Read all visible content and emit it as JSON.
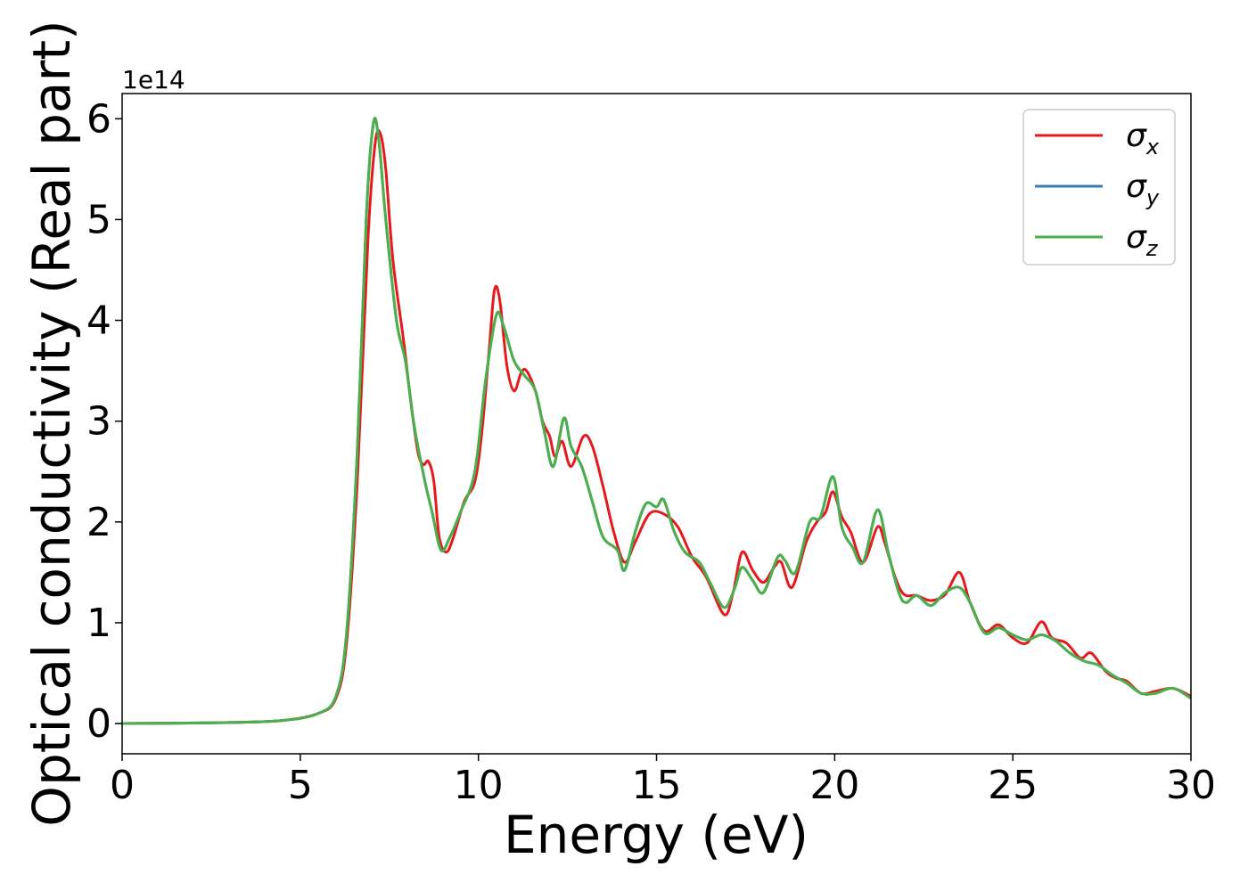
{
  "chart_data": {
    "type": "line",
    "xlabel": "Energy (eV)",
    "ylabel": "Optical conductivity (Real part)",
    "offset_text": "1e14",
    "y_scale_factor": 100000000000000.0,
    "xlim": [
      0,
      30
    ],
    "ylim": [
      -0.3,
      6.25
    ],
    "x_ticks": [
      0,
      5,
      10,
      15,
      20,
      25,
      30
    ],
    "y_ticks": [
      0,
      1,
      2,
      3,
      4,
      5,
      6
    ],
    "grid": false,
    "legend_position": "top-right",
    "series": [
      {
        "name": "σx",
        "symbol": "σ",
        "subscript": "x",
        "color": "#e41a1c",
        "points": [
          [
            0,
            0
          ],
          [
            3,
            0.01
          ],
          [
            4.5,
            0.03
          ],
          [
            5.5,
            0.1
          ],
          [
            6.0,
            0.25
          ],
          [
            6.3,
            0.8
          ],
          [
            6.6,
            2.4
          ],
          [
            6.9,
            4.8
          ],
          [
            7.1,
            5.75
          ],
          [
            7.25,
            5.85
          ],
          [
            7.4,
            5.5
          ],
          [
            7.6,
            4.6
          ],
          [
            7.9,
            3.8
          ],
          [
            8.1,
            3.2
          ],
          [
            8.3,
            2.7
          ],
          [
            8.45,
            2.57
          ],
          [
            8.6,
            2.6
          ],
          [
            8.75,
            2.4
          ],
          [
            8.9,
            1.85
          ],
          [
            9.1,
            1.7
          ],
          [
            9.3,
            1.85
          ],
          [
            9.6,
            2.2
          ],
          [
            9.9,
            2.4
          ],
          [
            10.1,
            2.9
          ],
          [
            10.3,
            3.7
          ],
          [
            10.45,
            4.3
          ],
          [
            10.6,
            4.2
          ],
          [
            10.8,
            3.55
          ],
          [
            11.0,
            3.3
          ],
          [
            11.2,
            3.48
          ],
          [
            11.35,
            3.5
          ],
          [
            11.6,
            3.3
          ],
          [
            11.8,
            3.0
          ],
          [
            12.0,
            2.85
          ],
          [
            12.15,
            2.65
          ],
          [
            12.35,
            2.8
          ],
          [
            12.6,
            2.55
          ],
          [
            12.95,
            2.85
          ],
          [
            13.2,
            2.75
          ],
          [
            13.5,
            2.35
          ],
          [
            13.8,
            1.9
          ],
          [
            14.1,
            1.6
          ],
          [
            14.4,
            1.8
          ],
          [
            14.8,
            2.08
          ],
          [
            15.2,
            2.08
          ],
          [
            15.6,
            1.95
          ],
          [
            16.0,
            1.65
          ],
          [
            16.4,
            1.45
          ],
          [
            16.9,
            1.08
          ],
          [
            17.15,
            1.3
          ],
          [
            17.4,
            1.7
          ],
          [
            17.7,
            1.52
          ],
          [
            18.0,
            1.4
          ],
          [
            18.3,
            1.55
          ],
          [
            18.5,
            1.6
          ],
          [
            18.8,
            1.35
          ],
          [
            19.2,
            1.8
          ],
          [
            19.5,
            2.0
          ],
          [
            19.75,
            2.1
          ],
          [
            19.95,
            2.3
          ],
          [
            20.2,
            2.05
          ],
          [
            20.45,
            1.9
          ],
          [
            20.8,
            1.6
          ],
          [
            21.2,
            1.95
          ],
          [
            21.4,
            1.8
          ],
          [
            21.7,
            1.45
          ],
          [
            21.95,
            1.28
          ],
          [
            22.3,
            1.27
          ],
          [
            22.7,
            1.22
          ],
          [
            23.1,
            1.28
          ],
          [
            23.5,
            1.5
          ],
          [
            23.8,
            1.2
          ],
          [
            24.2,
            0.92
          ],
          [
            24.6,
            0.98
          ],
          [
            25.0,
            0.85
          ],
          [
            25.4,
            0.8
          ],
          [
            25.8,
            1.01
          ],
          [
            26.1,
            0.85
          ],
          [
            26.5,
            0.8
          ],
          [
            26.9,
            0.65
          ],
          [
            27.2,
            0.7
          ],
          [
            27.6,
            0.52
          ],
          [
            27.9,
            0.45
          ],
          [
            28.2,
            0.42
          ],
          [
            28.6,
            0.3
          ],
          [
            29.0,
            0.32
          ],
          [
            29.5,
            0.35
          ],
          [
            30.0,
            0.27
          ]
        ]
      },
      {
        "name": "σy",
        "symbol": "σ",
        "subscript": "y",
        "color": "#377eb8",
        "points": [
          [
            0,
            0
          ],
          [
            3,
            0.01
          ],
          [
            4.5,
            0.03
          ],
          [
            5.5,
            0.1
          ],
          [
            6.0,
            0.27
          ],
          [
            6.3,
            0.9
          ],
          [
            6.6,
            2.7
          ],
          [
            6.85,
            5.0
          ],
          [
            7.05,
            5.95
          ],
          [
            7.2,
            5.8
          ],
          [
            7.4,
            5.0
          ],
          [
            7.7,
            4.0
          ],
          [
            7.95,
            3.6
          ],
          [
            8.2,
            2.95
          ],
          [
            8.5,
            2.4
          ],
          [
            8.7,
            2.1
          ],
          [
            8.95,
            1.72
          ],
          [
            9.2,
            1.85
          ],
          [
            9.5,
            2.1
          ],
          [
            9.9,
            2.5
          ],
          [
            10.2,
            3.4
          ],
          [
            10.5,
            4.05
          ],
          [
            10.7,
            3.95
          ],
          [
            11.0,
            3.6
          ],
          [
            11.3,
            3.45
          ],
          [
            11.6,
            3.3
          ],
          [
            11.85,
            2.9
          ],
          [
            12.1,
            2.55
          ],
          [
            12.4,
            3.03
          ],
          [
            12.6,
            2.75
          ],
          [
            12.9,
            2.55
          ],
          [
            13.2,
            2.2
          ],
          [
            13.5,
            1.85
          ],
          [
            13.9,
            1.72
          ],
          [
            14.1,
            1.52
          ],
          [
            14.4,
            1.9
          ],
          [
            14.7,
            2.18
          ],
          [
            15.0,
            2.15
          ],
          [
            15.2,
            2.22
          ],
          [
            15.5,
            1.9
          ],
          [
            15.8,
            1.7
          ],
          [
            16.2,
            1.6
          ],
          [
            16.5,
            1.4
          ],
          [
            16.9,
            1.15
          ],
          [
            17.2,
            1.35
          ],
          [
            17.4,
            1.55
          ],
          [
            17.7,
            1.42
          ],
          [
            18.0,
            1.3
          ],
          [
            18.4,
            1.65
          ],
          [
            18.6,
            1.62
          ],
          [
            18.9,
            1.5
          ],
          [
            19.3,
            2.0
          ],
          [
            19.6,
            2.05
          ],
          [
            19.95,
            2.45
          ],
          [
            20.2,
            1.95
          ],
          [
            20.5,
            1.75
          ],
          [
            20.8,
            1.6
          ],
          [
            21.2,
            2.12
          ],
          [
            21.5,
            1.7
          ],
          [
            21.8,
            1.3
          ],
          [
            22.0,
            1.2
          ],
          [
            22.3,
            1.27
          ],
          [
            22.7,
            1.17
          ],
          [
            23.1,
            1.3
          ],
          [
            23.5,
            1.35
          ],
          [
            23.8,
            1.2
          ],
          [
            24.2,
            0.9
          ],
          [
            24.6,
            0.95
          ],
          [
            25.0,
            0.88
          ],
          [
            25.4,
            0.83
          ],
          [
            25.8,
            0.88
          ],
          [
            26.2,
            0.82
          ],
          [
            26.6,
            0.7
          ],
          [
            27.0,
            0.62
          ],
          [
            27.4,
            0.58
          ],
          [
            27.8,
            0.48
          ],
          [
            28.2,
            0.4
          ],
          [
            28.6,
            0.3
          ],
          [
            29.0,
            0.3
          ],
          [
            29.5,
            0.35
          ],
          [
            30.0,
            0.25
          ]
        ]
      },
      {
        "name": "σz",
        "symbol": "σ",
        "subscript": "z",
        "color": "#4daf4a",
        "points": [
          [
            0,
            0
          ],
          [
            3,
            0.01
          ],
          [
            4.5,
            0.03
          ],
          [
            5.5,
            0.1
          ],
          [
            6.0,
            0.27
          ],
          [
            6.3,
            0.9
          ],
          [
            6.6,
            2.7
          ],
          [
            6.85,
            5.0
          ],
          [
            7.05,
            5.95
          ],
          [
            7.2,
            5.8
          ],
          [
            7.4,
            5.0
          ],
          [
            7.7,
            4.0
          ],
          [
            7.95,
            3.6
          ],
          [
            8.2,
            2.95
          ],
          [
            8.5,
            2.4
          ],
          [
            8.7,
            2.1
          ],
          [
            8.95,
            1.72
          ],
          [
            9.2,
            1.85
          ],
          [
            9.5,
            2.1
          ],
          [
            9.9,
            2.5
          ],
          [
            10.2,
            3.4
          ],
          [
            10.5,
            4.05
          ],
          [
            10.7,
            3.95
          ],
          [
            11.0,
            3.6
          ],
          [
            11.3,
            3.45
          ],
          [
            11.6,
            3.3
          ],
          [
            11.85,
            2.9
          ],
          [
            12.1,
            2.55
          ],
          [
            12.4,
            3.03
          ],
          [
            12.6,
            2.75
          ],
          [
            12.9,
            2.55
          ],
          [
            13.2,
            2.2
          ],
          [
            13.5,
            1.85
          ],
          [
            13.9,
            1.72
          ],
          [
            14.1,
            1.52
          ],
          [
            14.4,
            1.9
          ],
          [
            14.7,
            2.18
          ],
          [
            15.0,
            2.15
          ],
          [
            15.2,
            2.22
          ],
          [
            15.5,
            1.9
          ],
          [
            15.8,
            1.7
          ],
          [
            16.2,
            1.6
          ],
          [
            16.5,
            1.4
          ],
          [
            16.9,
            1.15
          ],
          [
            17.2,
            1.35
          ],
          [
            17.4,
            1.55
          ],
          [
            17.7,
            1.42
          ],
          [
            18.0,
            1.3
          ],
          [
            18.4,
            1.65
          ],
          [
            18.6,
            1.62
          ],
          [
            18.9,
            1.5
          ],
          [
            19.3,
            2.0
          ],
          [
            19.6,
            2.05
          ],
          [
            19.95,
            2.45
          ],
          [
            20.2,
            1.95
          ],
          [
            20.5,
            1.75
          ],
          [
            20.8,
            1.6
          ],
          [
            21.2,
            2.12
          ],
          [
            21.5,
            1.7
          ],
          [
            21.8,
            1.3
          ],
          [
            22.0,
            1.2
          ],
          [
            22.3,
            1.27
          ],
          [
            22.7,
            1.17
          ],
          [
            23.1,
            1.3
          ],
          [
            23.5,
            1.35
          ],
          [
            23.8,
            1.2
          ],
          [
            24.2,
            0.9
          ],
          [
            24.6,
            0.95
          ],
          [
            25.0,
            0.88
          ],
          [
            25.4,
            0.83
          ],
          [
            25.8,
            0.88
          ],
          [
            26.2,
            0.82
          ],
          [
            26.6,
            0.7
          ],
          [
            27.0,
            0.62
          ],
          [
            27.4,
            0.58
          ],
          [
            27.8,
            0.48
          ],
          [
            28.2,
            0.4
          ],
          [
            28.6,
            0.3
          ],
          [
            29.0,
            0.3
          ],
          [
            29.5,
            0.35
          ],
          [
            30.0,
            0.25
          ]
        ]
      }
    ]
  }
}
